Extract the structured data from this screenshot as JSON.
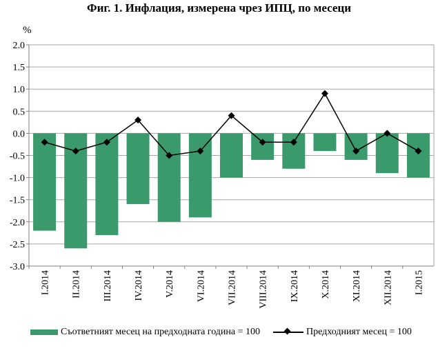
{
  "header": {
    "title": "Фиг. 1. Инфлация, измерена чрез ИПЦ, по месеци",
    "unit": "%"
  },
  "colors": {
    "bar": "#3a9a6b",
    "line": "#000000",
    "grid": "#a6a6a6",
    "axis": "#7f7f7f"
  },
  "chart_data": {
    "type": "bar",
    "title": "Фиг. 1. Инфлация, измерена чрез ИПЦ, по месеци",
    "ylabel": "%",
    "xlabel": "",
    "ylim": [
      -3.0,
      2.0
    ],
    "yticks": [
      "2.0",
      "1.5",
      "1.0",
      "0.5",
      "0.0",
      "-0.5",
      "-1.0",
      "-1.5",
      "-2.0",
      "-2.5",
      "-3.0"
    ],
    "grid": true,
    "legend_position": "bottom",
    "categories": [
      "I.2014",
      "II.2014",
      "III.2014",
      "IV.2014",
      "V.2014",
      "VI.2014",
      "VII.2014",
      "VIII.2014",
      "IX.2014",
      "X.2014",
      "XI.2014",
      "XII.2014",
      "I.2015"
    ],
    "series": [
      {
        "name": "Съответният месец на предходната година = 100",
        "type": "bar",
        "values": [
          -2.2,
          -2.6,
          -2.3,
          -1.6,
          -2.0,
          -1.9,
          -1.0,
          -0.6,
          -0.8,
          -0.4,
          -0.6,
          -0.9,
          -1.0
        ]
      },
      {
        "name": "Предходният месец = 100",
        "type": "line",
        "values": [
          -0.2,
          -0.4,
          -0.2,
          0.3,
          -0.5,
          -0.4,
          0.4,
          -0.2,
          -0.2,
          0.9,
          -0.4,
          0.0,
          -0.4
        ]
      }
    ]
  }
}
